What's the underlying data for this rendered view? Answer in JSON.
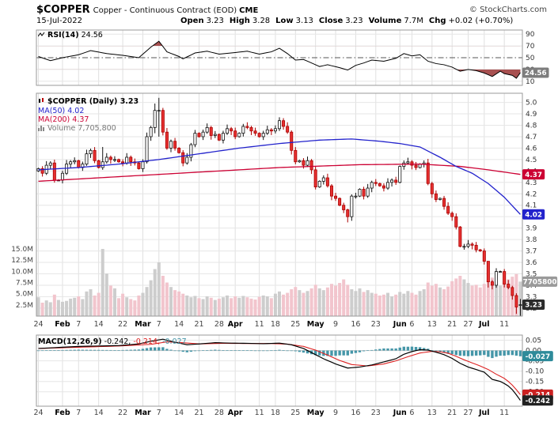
{
  "header": {
    "symbol": "$COPPER",
    "description": "Copper - Continuous Contract (EOD)",
    "exchange": "CME",
    "copyright": "© StockCharts.com",
    "date": "15-Jul-2022"
  },
  "quote": {
    "open_label": "Open",
    "open": "3.23",
    "high_label": "High",
    "high": "3.28",
    "low_label": "Low",
    "low": "3.13",
    "close_label": "Close",
    "close": "3.23",
    "volume_label": "Volume",
    "volume": "7.7M",
    "chg_label": "Chg",
    "chg": "+0.02 (+0.70%)"
  },
  "legends": {
    "rsi_label": "RSI(14)",
    "rsi_value": "24.56",
    "symbol_line": "$COPPER (Daily) 3.23",
    "ma50_line": "MA(50) 4.02",
    "ma200_line": "MA(200) 4.37",
    "volume_line": "Volume 7,705,800",
    "macd_label": "MACD(12,26,9)",
    "macd_value": "-0.242,",
    "signal_value": "-0.214,",
    "hist_value": "-0.027"
  },
  "colors": {
    "ma50": "#2222cc",
    "ma200": "#cc0033",
    "candle_up_fill": "#ffffff",
    "candle_up_stroke": "#111111",
    "candle_down_fill": "#e63030",
    "candle_down_stroke": "#aa0000",
    "vol_up": "#cdcdcd",
    "vol_down": "#f2c5cd",
    "macd_line": "#000000",
    "signal_line": "#dd2222",
    "hist": "#4596a8",
    "rsi_line": "#000000",
    "rsi_fill": "#993333",
    "grid": "#e6e6e6",
    "vgrid": "#e0e0e0",
    "border": "#999999",
    "legend_volume": "#777777",
    "days": "#444444"
  },
  "badges": {
    "rsi": [
      {
        "text": "24.56",
        "bg": "#7d7d7d",
        "v": 24.56
      }
    ],
    "price": [
      {
        "text": "4.37",
        "bg": "#cc0033",
        "v": 4.37
      },
      {
        "text": "4.02",
        "bg": "#2222cc",
        "v": 4.02
      },
      {
        "text": "3.23",
        "bg": "#2b2b2b",
        "v": 3.23
      }
    ],
    "volume": [
      {
        "text": "7705800",
        "bg": "#9a9a9a",
        "vol": 7.7058
      }
    ],
    "macd": [
      {
        "text": "-0.027",
        "bg": "#2e8b9a",
        "v": -0.027
      },
      {
        "text": "-0.214",
        "bg": "#cc2222",
        "v": -0.214
      },
      {
        "text": "-0.242",
        "bg": "#222222",
        "v": -0.242
      }
    ]
  },
  "xaxis_labels": [
    {
      "t": "24",
      "i": 0,
      "m": false
    },
    {
      "t": "Feb",
      "i": 6,
      "m": true
    },
    {
      "t": "7",
      "i": 10,
      "m": false
    },
    {
      "t": "14",
      "i": 15,
      "m": false
    },
    {
      "t": "22",
      "i": 21,
      "m": false
    },
    {
      "t": "Mar",
      "i": 26,
      "m": true
    },
    {
      "t": "7",
      "i": 30,
      "m": false
    },
    {
      "t": "14",
      "i": 35,
      "m": false
    },
    {
      "t": "21",
      "i": 40,
      "m": false
    },
    {
      "t": "28",
      "i": 45,
      "m": false
    },
    {
      "t": "Apr",
      "i": 49,
      "m": true
    },
    {
      "t": "11",
      "i": 55,
      "m": false
    },
    {
      "t": "18",
      "i": 59,
      "m": false
    },
    {
      "t": "25",
      "i": 64,
      "m": false
    },
    {
      "t": "May",
      "i": 69,
      "m": true
    },
    {
      "t": "9",
      "i": 74,
      "m": false
    },
    {
      "t": "16",
      "i": 79,
      "m": false
    },
    {
      "t": "23",
      "i": 84,
      "m": false
    },
    {
      "t": "Jun",
      "i": 90,
      "m": true
    },
    {
      "t": "6",
      "i": 93,
      "m": false
    },
    {
      "t": "13",
      "i": 98,
      "m": false
    },
    {
      "t": "21",
      "i": 103,
      "m": false
    },
    {
      "t": "27",
      "i": 107,
      "m": false
    },
    {
      "t": "Jul",
      "i": 111,
      "m": true
    },
    {
      "t": "11",
      "i": 116,
      "m": false
    }
  ],
  "chart_data": [
    {
      "type": "line",
      "title": "RSI(14)",
      "ylim": [
        0,
        100
      ],
      "yticks": [
        90,
        70,
        50,
        30,
        10
      ],
      "overbought": 70,
      "oversold": 30,
      "midline": 50,
      "last": 24.56,
      "keypoints": [
        [
          0,
          52
        ],
        [
          3,
          45
        ],
        [
          6,
          50
        ],
        [
          10,
          55
        ],
        [
          13,
          62
        ],
        [
          17,
          57
        ],
        [
          21,
          54
        ],
        [
          25,
          50
        ],
        [
          28,
          68
        ],
        [
          30,
          78
        ],
        [
          32,
          60
        ],
        [
          35,
          52
        ],
        [
          36,
          48
        ],
        [
          39,
          58
        ],
        [
          42,
          61
        ],
        [
          45,
          56
        ],
        [
          48,
          58
        ],
        [
          52,
          61
        ],
        [
          55,
          56
        ],
        [
          58,
          60
        ],
        [
          60,
          66
        ],
        [
          62,
          57
        ],
        [
          64,
          46
        ],
        [
          66,
          47
        ],
        [
          68,
          41
        ],
        [
          70,
          35
        ],
        [
          72,
          38
        ],
        [
          75,
          33
        ],
        [
          77,
          29
        ],
        [
          79,
          37
        ],
        [
          81,
          41
        ],
        [
          83,
          46
        ],
        [
          86,
          44
        ],
        [
          89,
          49
        ],
        [
          91,
          57
        ],
        [
          93,
          53
        ],
        [
          95,
          55
        ],
        [
          97,
          44
        ],
        [
          99,
          40
        ],
        [
          101,
          38
        ],
        [
          103,
          34
        ],
        [
          105,
          27
        ],
        [
          107,
          30
        ],
        [
          109,
          28
        ],
        [
          111,
          24
        ],
        [
          113,
          18
        ],
        [
          115,
          27
        ],
        [
          116,
          23
        ],
        [
          118,
          20
        ],
        [
          119,
          15
        ],
        [
          120,
          24.56
        ]
      ]
    },
    {
      "type": "candlestick",
      "title": "$COPPER (Daily)",
      "x_start": "24-Jan-2022",
      "x_end": "15-Jul-2022",
      "ylim": [
        3.2,
        5.0
      ],
      "last_ohlc": {
        "open": 3.23,
        "high": 3.28,
        "low": 3.13,
        "close": 3.23
      },
      "close": [
        4.42,
        4.38,
        4.45,
        4.47,
        4.32,
        4.32,
        4.38,
        4.46,
        4.48,
        4.49,
        4.43,
        4.46,
        4.55,
        4.58,
        4.49,
        4.43,
        4.48,
        4.52,
        4.5,
        4.5,
        4.48,
        4.47,
        4.52,
        4.48,
        4.47,
        4.42,
        4.48,
        4.7,
        4.78,
        4.93,
        4.93,
        4.74,
        4.6,
        4.66,
        4.6,
        4.56,
        4.47,
        4.52,
        4.63,
        4.73,
        4.7,
        4.74,
        4.78,
        4.71,
        4.72,
        4.67,
        4.73,
        4.77,
        4.75,
        4.7,
        4.73,
        4.79,
        4.78,
        4.75,
        4.73,
        4.7,
        4.73,
        4.76,
        4.75,
        4.77,
        4.84,
        4.79,
        4.74,
        4.58,
        4.48,
        4.49,
        4.45,
        4.49,
        4.41,
        4.26,
        4.31,
        4.34,
        4.27,
        4.18,
        4.16,
        4.1,
        4.06,
        4.0,
        4.18,
        4.18,
        4.24,
        4.18,
        4.25,
        4.3,
        4.29,
        4.27,
        4.25,
        4.3,
        4.32,
        4.3,
        4.44,
        4.47,
        4.48,
        4.45,
        4.43,
        4.46,
        4.47,
        4.29,
        4.2,
        4.15,
        4.16,
        4.09,
        4.03,
        4.0,
        3.91,
        3.74,
        3.74,
        3.76,
        3.75,
        3.71,
        3.7,
        3.61,
        3.43,
        3.4,
        3.52,
        3.52,
        3.41,
        3.38,
        3.31,
        3.21,
        3.23
      ],
      "open_overrides": {
        "0": 4.4,
        "120": 3.23
      },
      "wick_overrides": {
        "16": [
          4.61,
          4.41
        ],
        "29": [
          4.99,
          4.73
        ],
        "30": [
          5.04,
          4.7
        ],
        "60": [
          4.87,
          4.75
        ],
        "77": [
          4.07,
          3.95
        ],
        "112": [
          3.6,
          3.38
        ],
        "119": [
          3.33,
          3.15
        ],
        "120": [
          3.28,
          3.13
        ]
      },
      "ma50_last": 4.02,
      "ma50_keypoints": [
        [
          0,
          4.41
        ],
        [
          10,
          4.43
        ],
        [
          20,
          4.46
        ],
        [
          30,
          4.5
        ],
        [
          40,
          4.55
        ],
        [
          50,
          4.6
        ],
        [
          60,
          4.64
        ],
        [
          70,
          4.67
        ],
        [
          78,
          4.68
        ],
        [
          85,
          4.66
        ],
        [
          90,
          4.64
        ],
        [
          95,
          4.61
        ],
        [
          100,
          4.52
        ],
        [
          104,
          4.44
        ],
        [
          108,
          4.38
        ],
        [
          112,
          4.29
        ],
        [
          116,
          4.17
        ],
        [
          120,
          4.02
        ]
      ],
      "ma200_last": 4.37,
      "ma200_keypoints": [
        [
          0,
          4.31
        ],
        [
          20,
          4.35
        ],
        [
          40,
          4.39
        ],
        [
          60,
          4.43
        ],
        [
          80,
          4.455
        ],
        [
          95,
          4.46
        ],
        [
          105,
          4.44
        ],
        [
          112,
          4.41
        ],
        [
          120,
          4.37
        ]
      ]
    },
    {
      "type": "bar",
      "title": "Volume",
      "unit": "millions",
      "ylim": [
        0,
        15
      ],
      "yticks": [
        [
          "15.0M",
          15
        ],
        [
          "12.5M",
          12.5
        ],
        [
          "10.0M",
          10
        ],
        [
          "7.5M",
          7.5
        ],
        [
          "5.0M",
          5
        ],
        [
          "2.5M",
          2.5
        ]
      ],
      "last": 7.7058,
      "values": [
        4.2,
        3.0,
        3.5,
        3.1,
        4.8,
        3.6,
        3.2,
        3.4,
        3.9,
        4.1,
        4.4,
        3.8,
        5.5,
        6.0,
        4.6,
        5.2,
        15.0,
        9.5,
        6.8,
        6.2,
        4.0,
        5.0,
        4.2,
        3.8,
        3.5,
        4.6,
        5.2,
        6.5,
        8.0,
        10.5,
        12.0,
        9.0,
        7.5,
        6.5,
        5.8,
        5.5,
        5.0,
        4.6,
        4.2,
        4.5,
        4.0,
        3.8,
        4.4,
        4.1,
        3.6,
        3.9,
        4.2,
        4.6,
        4.0,
        4.4,
        4.1,
        4.5,
        4.2,
        3.9,
        3.7,
        4.3,
        4.6,
        4.4,
        4.0,
        5.0,
        5.5,
        4.8,
        5.2,
        6.0,
        6.5,
        5.8,
        5.2,
        5.6,
        6.2,
        7.0,
        6.2,
        5.8,
        6.4,
        7.2,
        6.8,
        7.4,
        8.2,
        7.0,
        6.0,
        5.6,
        6.2,
        5.4,
        5.8,
        5.2,
        5.0,
        4.6,
        4.8,
        5.2,
        4.4,
        4.8,
        5.4,
        5.0,
        5.6,
        5.2,
        4.8,
        5.6,
        6.0,
        7.5,
        6.8,
        7.2,
        6.4,
        6.0,
        6.6,
        7.8,
        8.4,
        9.0,
        8.2,
        7.4,
        6.8,
        7.0,
        6.4,
        7.2,
        8.0,
        8.6,
        7.4,
        6.8,
        7.8,
        8.2,
        8.8,
        9.4,
        7.7058
      ]
    },
    {
      "type": "line",
      "title": "MACD(12,26,9)",
      "ylim": [
        -0.27,
        0.075
      ],
      "yticks": [
        0.05,
        0,
        -0.05,
        -0.1,
        -0.15,
        -0.2
      ],
      "last": {
        "macd": -0.242,
        "signal": -0.214,
        "hist": -0.027
      },
      "macd_keypoints": [
        [
          0,
          0.01
        ],
        [
          5,
          0.015
        ],
        [
          10,
          0.02
        ],
        [
          15,
          0.022
        ],
        [
          20,
          0.024
        ],
        [
          25,
          0.032
        ],
        [
          28,
          0.045
        ],
        [
          31,
          0.055
        ],
        [
          34,
          0.04
        ],
        [
          37,
          0.028
        ],
        [
          40,
          0.032
        ],
        [
          44,
          0.038
        ],
        [
          48,
          0.036
        ],
        [
          52,
          0.035
        ],
        [
          56,
          0.033
        ],
        [
          60,
          0.036
        ],
        [
          63,
          0.028
        ],
        [
          66,
          0.01
        ],
        [
          68,
          -0.01
        ],
        [
          71,
          -0.04
        ],
        [
          74,
          -0.065
        ],
        [
          77,
          -0.085
        ],
        [
          80,
          -0.08
        ],
        [
          83,
          -0.07
        ],
        [
          86,
          -0.055
        ],
        [
          89,
          -0.04
        ],
        [
          91,
          -0.018
        ],
        [
          93,
          -0.005
        ],
        [
          95,
          0.004
        ],
        [
          97,
          0.002
        ],
        [
          99,
          -0.008
        ],
        [
          101,
          -0.02
        ],
        [
          103,
          -0.038
        ],
        [
          105,
          -0.062
        ],
        [
          107,
          -0.08
        ],
        [
          109,
          -0.092
        ],
        [
          111,
          -0.105
        ],
        [
          113,
          -0.14
        ],
        [
          115,
          -0.15
        ],
        [
          116,
          -0.16
        ],
        [
          117,
          -0.172
        ],
        [
          118,
          -0.19
        ],
        [
          119,
          -0.215
        ],
        [
          120,
          -0.242
        ]
      ],
      "signal_keypoints": [
        [
          0,
          0.01
        ],
        [
          10,
          0.016
        ],
        [
          20,
          0.022
        ],
        [
          28,
          0.03
        ],
        [
          32,
          0.042
        ],
        [
          36,
          0.038
        ],
        [
          40,
          0.032
        ],
        [
          46,
          0.035
        ],
        [
          52,
          0.034
        ],
        [
          58,
          0.034
        ],
        [
          62,
          0.031
        ],
        [
          66,
          0.02
        ],
        [
          69,
          0.002
        ],
        [
          72,
          -0.022
        ],
        [
          75,
          -0.048
        ],
        [
          78,
          -0.068
        ],
        [
          82,
          -0.075
        ],
        [
          86,
          -0.065
        ],
        [
          89,
          -0.05
        ],
        [
          92,
          -0.03
        ],
        [
          95,
          -0.012
        ],
        [
          98,
          -0.004
        ],
        [
          100,
          -0.006
        ],
        [
          102,
          -0.013
        ],
        [
          104,
          -0.028
        ],
        [
          106,
          -0.045
        ],
        [
          108,
          -0.06
        ],
        [
          110,
          -0.075
        ],
        [
          112,
          -0.092
        ],
        [
          114,
          -0.115
        ],
        [
          116,
          -0.135
        ],
        [
          117,
          -0.15
        ],
        [
          118,
          -0.168
        ],
        [
          119,
          -0.19
        ],
        [
          120,
          -0.214
        ]
      ]
    }
  ]
}
